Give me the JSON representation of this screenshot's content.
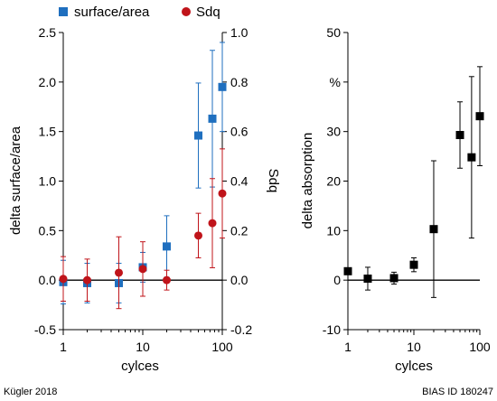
{
  "footer": {
    "left": "Kügler 2018",
    "right": "BIAS ID 180247"
  },
  "chart_data": [
    {
      "type": "scatter",
      "title": "",
      "xlabel": "cylces",
      "ylabel": "delta surface/area",
      "y2label": "Sdq",
      "xscale": "log",
      "xlim": [
        1,
        100
      ],
      "xticks": [
        1,
        10,
        100
      ],
      "xtick_labels": [
        "1",
        "10",
        "100"
      ],
      "ylim": [
        -0.5,
        2.5
      ],
      "yticks": [
        -0.5,
        0.0,
        0.5,
        1.0,
        1.5,
        2.0,
        2.5
      ],
      "ytick_labels": [
        "-0.5",
        "0.0",
        "0.5",
        "1.0",
        "1.5",
        "2.0",
        "2.5"
      ],
      "y2lim": [
        -0.2,
        1.0
      ],
      "y2ticks": [
        -0.2,
        0.0,
        0.2,
        0.4,
        0.6,
        0.8,
        1.0
      ],
      "y2tick_labels": [
        "-0.2",
        "0.0",
        "0.2",
        "0.4",
        "0.6",
        "0.8",
        "1.0"
      ],
      "legend_position": "top",
      "grid": false,
      "zero_line": true,
      "series": [
        {
          "name": "surface/area",
          "axis": "left",
          "marker": "square",
          "color": "#1f6fbf",
          "points": [
            {
              "x": 1,
              "y": -0.02,
              "err": 0.22
            },
            {
              "x": 2,
              "y": -0.03,
              "err": 0.2
            },
            {
              "x": 5,
              "y": -0.03,
              "err": 0.2
            },
            {
              "x": 10,
              "y": 0.13,
              "err": 0.15
            },
            {
              "x": 20,
              "y": 0.34,
              "err": 0.31
            },
            {
              "x": 50,
              "y": 1.46,
              "err": 0.53
            },
            {
              "x": 75,
              "y": 1.63,
              "err": 0.69
            },
            {
              "x": 100,
              "y": 1.95,
              "err": 0.45
            }
          ]
        },
        {
          "name": "Sdq",
          "axis": "right",
          "marker": "circle",
          "color": "#c0141a",
          "points": [
            {
              "x": 1,
              "y": 0.005,
              "err": 0.09
            },
            {
              "x": 2,
              "y": 0.0,
              "err": 0.085
            },
            {
              "x": 5,
              "y": 0.03,
              "err": 0.145
            },
            {
              "x": 10,
              "y": 0.045,
              "err": 0.11
            },
            {
              "x": 20,
              "y": 0.0,
              "err": 0.04
            },
            {
              "x": 50,
              "y": 0.18,
              "err": 0.09
            },
            {
              "x": 75,
              "y": 0.23,
              "err": 0.18
            },
            {
              "x": 100,
              "y": 0.35,
              "err": 0.18
            }
          ]
        }
      ]
    },
    {
      "type": "scatter",
      "title": "",
      "xlabel": "cylces",
      "ylabel": "delta absorption",
      "xscale": "log",
      "xlim": [
        1,
        100
      ],
      "xticks": [
        1,
        10,
        100
      ],
      "xtick_labels": [
        "1",
        "10",
        "100"
      ],
      "ylim": [
        -10,
        50
      ],
      "yticks": [
        -10,
        0,
        10,
        20,
        30,
        40,
        50
      ],
      "ytick_labels": [
        "-10",
        "0",
        "10",
        "20",
        "30",
        "%",
        "50"
      ],
      "grid": false,
      "zero_line": true,
      "series": [
        {
          "axis": "left",
          "marker": "square",
          "color": "#000000",
          "points": [
            {
              "x": 1,
              "y": 1.8,
              "err": 0.0
            },
            {
              "x": 2,
              "y": 0.3,
              "err": 2.3
            },
            {
              "x": 5,
              "y": 0.4,
              "err": 1.2
            },
            {
              "x": 10,
              "y": 3.1,
              "err": 1.4
            },
            {
              "x": 20,
              "y": 10.3,
              "err": 13.8
            },
            {
              "x": 50,
              "y": 29.3,
              "err": 6.7
            },
            {
              "x": 75,
              "y": 24.8,
              "err": 16.3
            },
            {
              "x": 100,
              "y": 33.1,
              "err": 10.0
            }
          ]
        }
      ]
    }
  ]
}
